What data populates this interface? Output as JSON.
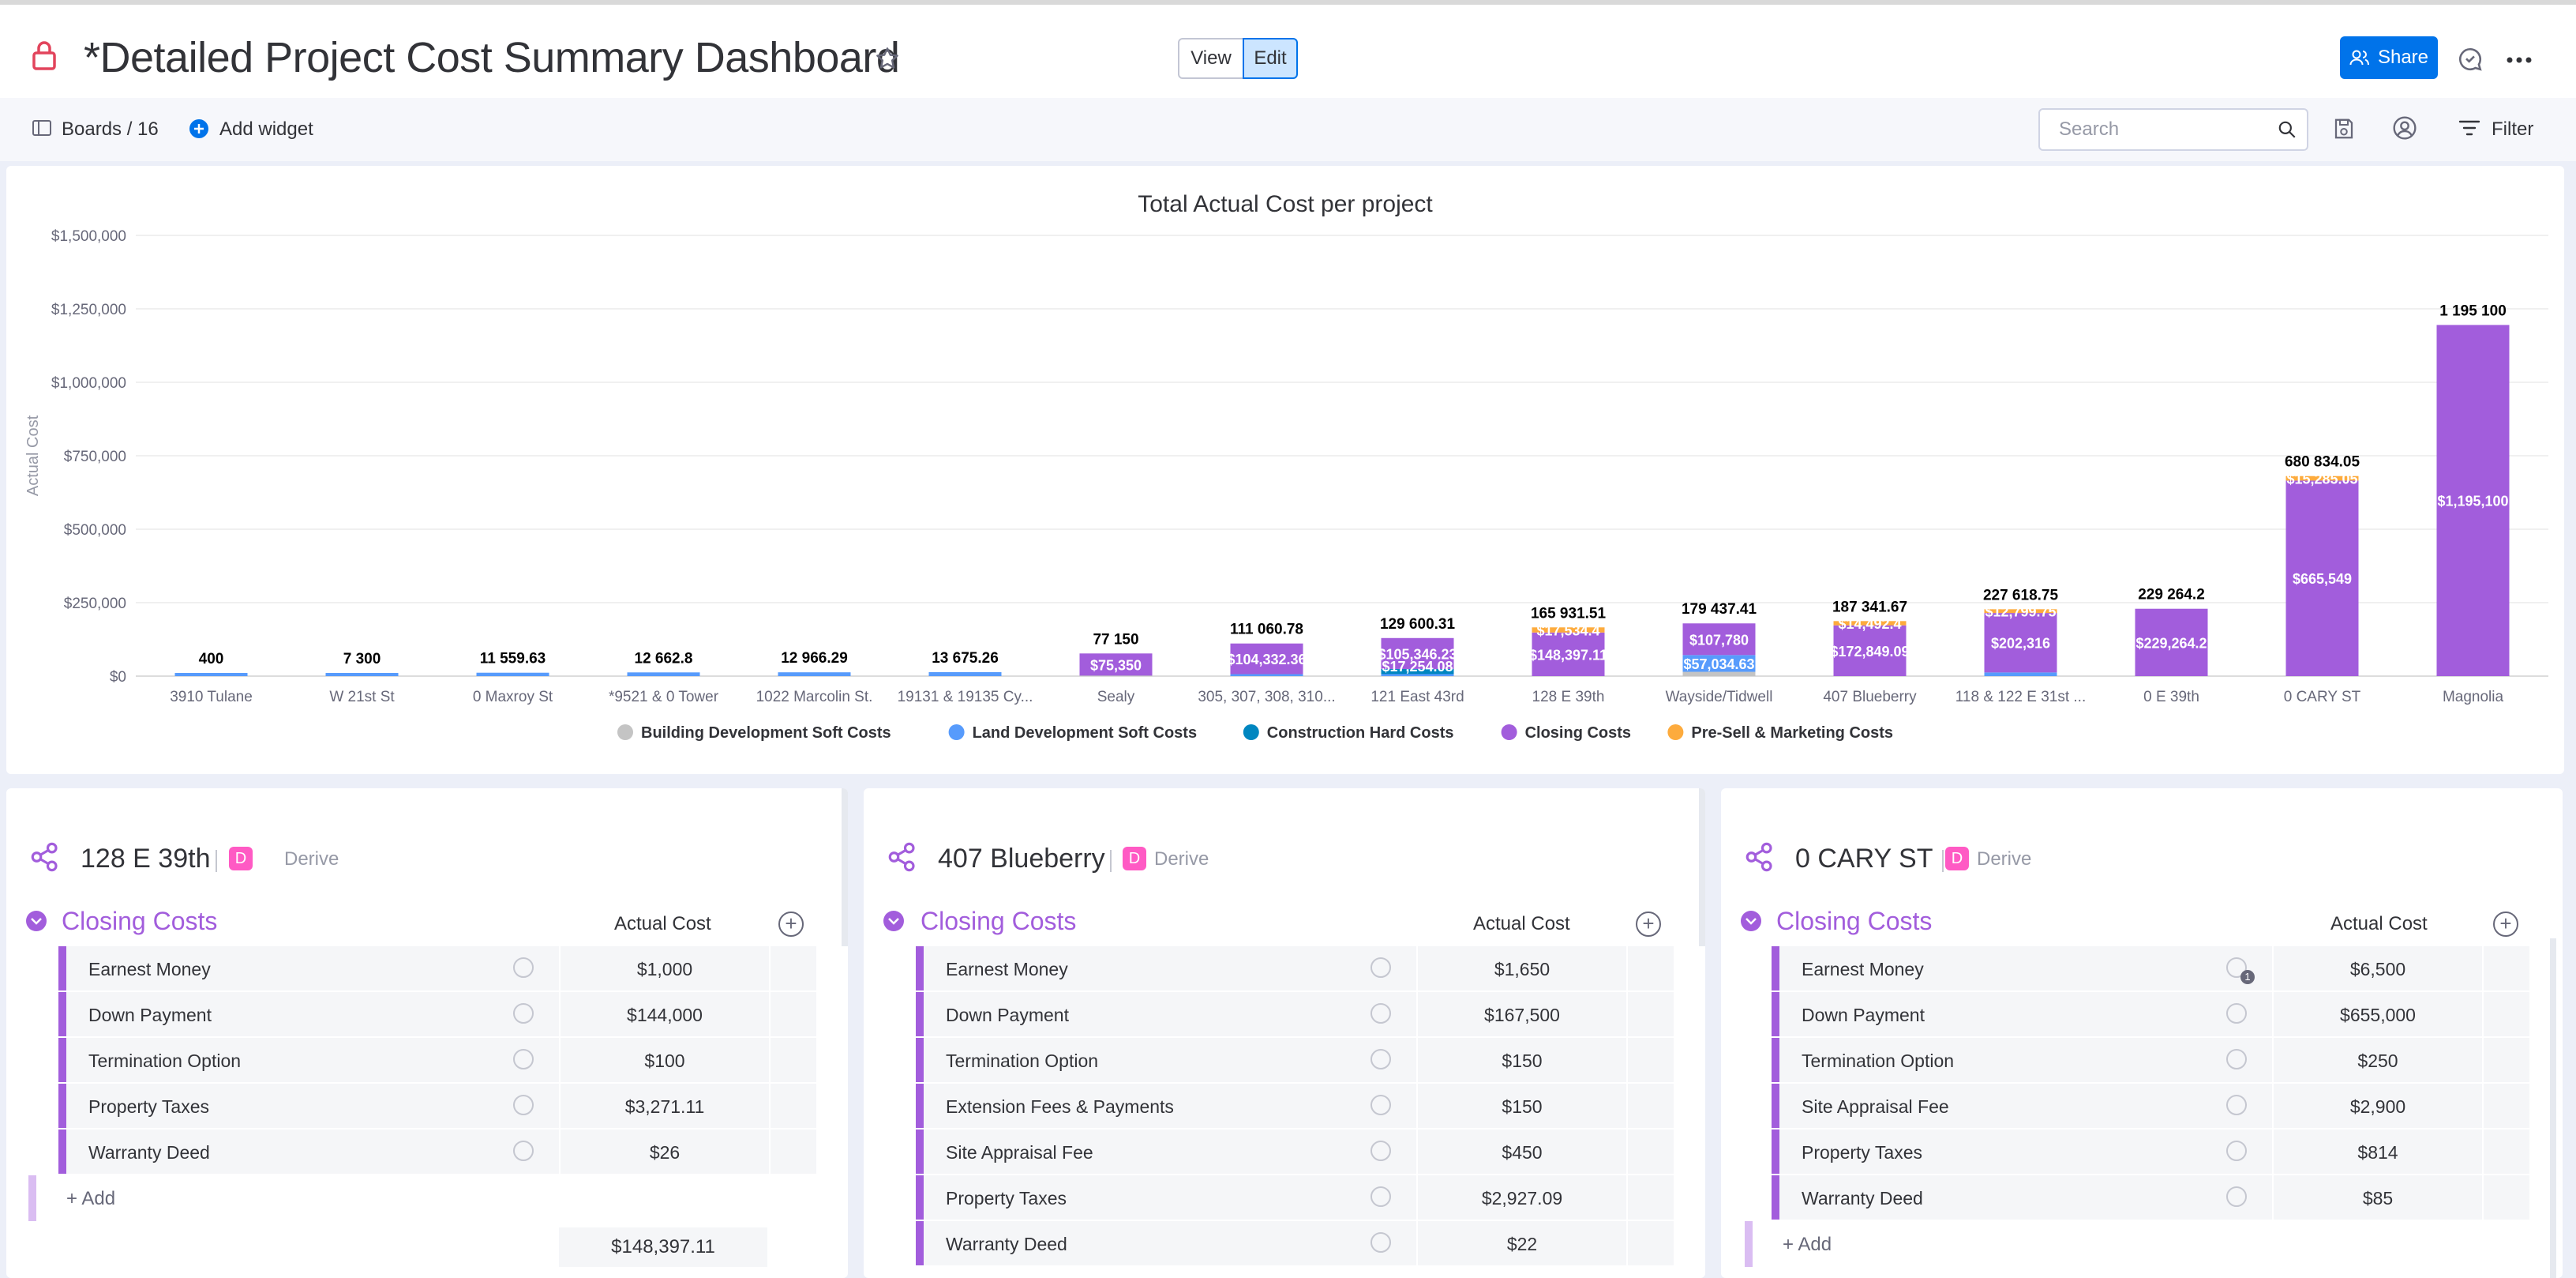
{
  "header": {
    "title": "*Detailed Project Cost Summary Dashboard",
    "view_label": "View",
    "edit_label": "Edit",
    "share_label": "Share"
  },
  "toolbar": {
    "boards_label": "Boards / 16",
    "add_widget_label": "Add widget",
    "search_placeholder": "Search",
    "filter_label": "Filter"
  },
  "colors": {
    "accent": "#0073ea",
    "closing": "#a25ddc",
    "building_soft": "#c4c4c4",
    "land_soft": "#579bfc",
    "construction_hard": "#0086c0",
    "presell": "#fdab3d"
  },
  "chart_data": {
    "type": "bar",
    "stacked": true,
    "title": "Total Actual Cost per project",
    "ylabel": "Actual Cost",
    "ylim": [
      0,
      1500000
    ],
    "yticks": [
      "$0",
      "$250,000",
      "$500,000",
      "$750,000",
      "$1,000,000",
      "$1,250,000",
      "$1,500,000"
    ],
    "categories": [
      "3910 Tulane",
      "W 21st St",
      "0 Maxroy St",
      "*9521 & 0 Tower",
      "1022 Marcolin St.",
      "19131 & 19135 Cy...",
      "Sealy",
      "305, 307, 308, 310...",
      "121 East 43rd",
      "128 E 39th",
      "Wayside/Tidwell",
      "407 Blueberry",
      "118 & 122 E 31st ...",
      "0 E 39th",
      "0 CARY ST",
      "Magnolia"
    ],
    "totals": [
      "400",
      "7 300",
      "11 559.63",
      "12 662.8",
      "12 966.29",
      "13 675.26",
      "77 150",
      "111 060.78",
      "129 600.31",
      "165 931.51",
      "179 437.41",
      "187 341.67",
      "227 618.75",
      "229 264.2",
      "680 834.05",
      "1 195 100"
    ],
    "series": [
      {
        "name": "Building Development Soft Costs",
        "color": "#c4c4c4",
        "values": [
          0,
          0,
          0,
          0,
          0,
          0,
          1800,
          0,
          0,
          0,
          14623,
          0,
          0,
          0,
          0,
          0
        ]
      },
      {
        "name": "Land Development Soft Costs",
        "color": "#579bfc",
        "values": [
          400,
          7300,
          11559.63,
          12662.8,
          12966.29,
          13675.26,
          0,
          6728,
          7000,
          0,
          57034,
          0,
          12503,
          0,
          0,
          0
        ]
      },
      {
        "name": "Construction Hard Costs",
        "color": "#0086c0",
        "values": [
          0,
          0,
          0,
          0,
          0,
          0,
          0,
          0,
          17254,
          0,
          0,
          0,
          0,
          0,
          0,
          0
        ]
      },
      {
        "name": "Closing Costs",
        "color": "#a25ddc",
        "values": [
          0,
          0,
          0,
          0,
          0,
          0,
          75350,
          104332,
          105346,
          148397,
          107780,
          172849,
          202316,
          229264.2,
          665549,
          1195100
        ]
      },
      {
        "name": "Pre-Sell & Marketing Costs",
        "color": "#fdab3d",
        "values": [
          0,
          0,
          0,
          0,
          0,
          0,
          0,
          0,
          0,
          17534,
          0,
          14492,
          12799,
          0,
          15285,
          0
        ]
      }
    ],
    "segment_labels": [
      [],
      [],
      [],
      [],
      [],
      [],
      [
        {
          "series": 3,
          "text": "$75,350"
        }
      ],
      [
        {
          "series": 3,
          "text": "$104,332.36"
        }
      ],
      [
        {
          "series": 2,
          "text": "$17,254.08"
        },
        {
          "series": 3,
          "text": "$105,346.23"
        }
      ],
      [
        {
          "series": 3,
          "text": "$148,397.11"
        },
        {
          "series": 4,
          "text": "$17,534.4"
        }
      ],
      [
        {
          "series": 3,
          "text": "$107,780"
        },
        {
          "series": 1,
          "text": "$57,034.63"
        }
      ],
      [
        {
          "series": 3,
          "text": "$172,849.09"
        },
        {
          "series": 4,
          "text": "$14,492.4"
        }
      ],
      [
        {
          "series": 3,
          "text": "$202,316"
        },
        {
          "series": 4,
          "text": "$12,799.75"
        }
      ],
      [
        {
          "series": 3,
          "text": "$229,264.2"
        }
      ],
      [
        {
          "series": 3,
          "text": "$665,549"
        },
        {
          "series": 4,
          "text": "$15,285.05"
        }
      ],
      [
        {
          "series": 3,
          "text": "$1,195,100"
        }
      ]
    ],
    "grid": true,
    "legend_position": "bottom"
  },
  "boards": [
    {
      "title": "128 E 39th",
      "derive_label": "Derive",
      "group_title": "Closing Costs",
      "column_header": "Actual Cost",
      "items": [
        {
          "name": "Earnest Money",
          "value": "$1,000"
        },
        {
          "name": "Down Payment",
          "value": "$144,000"
        },
        {
          "name": "Termination Option",
          "value": "$100"
        },
        {
          "name": "Property Taxes",
          "value": "$3,271.11"
        },
        {
          "name": "Warranty Deed",
          "value": "$26"
        }
      ],
      "add_label": "+ Add",
      "sum": "$148,397.11"
    },
    {
      "title": "407 Blueberry",
      "derive_label": "Derive",
      "group_title": "Closing Costs",
      "column_header": "Actual Cost",
      "items": [
        {
          "name": "Earnest Money",
          "value": "$1,650"
        },
        {
          "name": "Down Payment",
          "value": "$167,500"
        },
        {
          "name": "Termination Option",
          "value": "$150"
        },
        {
          "name": "Extension Fees & Payments",
          "value": "$150"
        },
        {
          "name": "Site Appraisal Fee",
          "value": "$450"
        },
        {
          "name": "Property Taxes",
          "value": "$2,927.09"
        },
        {
          "name": "Warranty Deed",
          "value": "$22"
        }
      ]
    },
    {
      "title": "0 CARY ST",
      "derive_label": "Derive",
      "group_title": "Closing Costs",
      "column_header": "Actual Cost",
      "items": [
        {
          "name": "Earnest Money",
          "value": "$6,500",
          "update_count": "1"
        },
        {
          "name": "Down Payment",
          "value": "$655,000"
        },
        {
          "name": "Termination Option",
          "value": "$250"
        },
        {
          "name": "Site Appraisal Fee",
          "value": "$2,900"
        },
        {
          "name": "Property Taxes",
          "value": "$814"
        },
        {
          "name": "Warranty Deed",
          "value": "$85"
        }
      ],
      "add_label": "+ Add"
    }
  ]
}
